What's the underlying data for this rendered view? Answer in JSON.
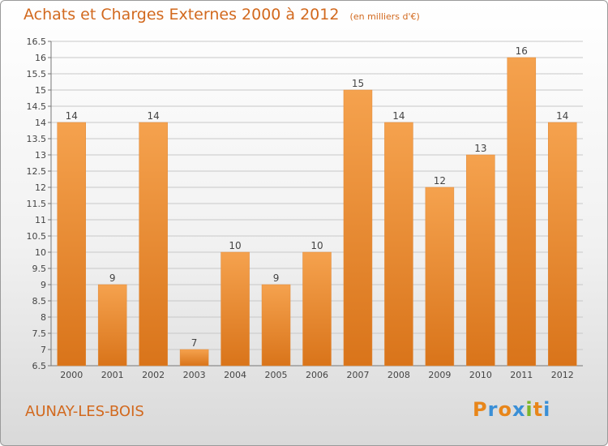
{
  "header": {
    "title": "Achats et Charges Externes 2000 à 2012",
    "unit": "(en milliers d'€)"
  },
  "footer": {
    "commune": "AUNAY-LES-BOIS",
    "logo_text": "Proxiti"
  },
  "colors": {
    "title": "#d2691e",
    "bar_light": "#f5a24e",
    "bar_dark": "#d9741a",
    "gridline": "#c8c8c8"
  },
  "chart_data": {
    "type": "bar",
    "title": "Achats et Charges Externes 2000 à 2012",
    "subtitle": "(en milliers d'€)",
    "categories": [
      "2000",
      "2001",
      "2002",
      "2003",
      "2004",
      "2005",
      "2006",
      "2007",
      "2008",
      "2009",
      "2010",
      "2011",
      "2012"
    ],
    "values": [
      14,
      9,
      14,
      7,
      10,
      9,
      10,
      15,
      14,
      12,
      13,
      16,
      14
    ],
    "data_labels": [
      "14",
      "9",
      "14",
      "7",
      "10",
      "9",
      "10",
      "15",
      "14",
      "12",
      "13",
      "16",
      "14"
    ],
    "ylim": [
      6.5,
      16.5
    ],
    "yticks": [
      "6.5",
      "7",
      "7.5",
      "8",
      "8.5",
      "9",
      "9.5",
      "10",
      "10.5",
      "11",
      "11.5",
      "12",
      "12.5",
      "13",
      "13.5",
      "14",
      "14.5",
      "15",
      "15.5",
      "16",
      "16.5"
    ],
    "grid": true,
    "legend": "none"
  }
}
